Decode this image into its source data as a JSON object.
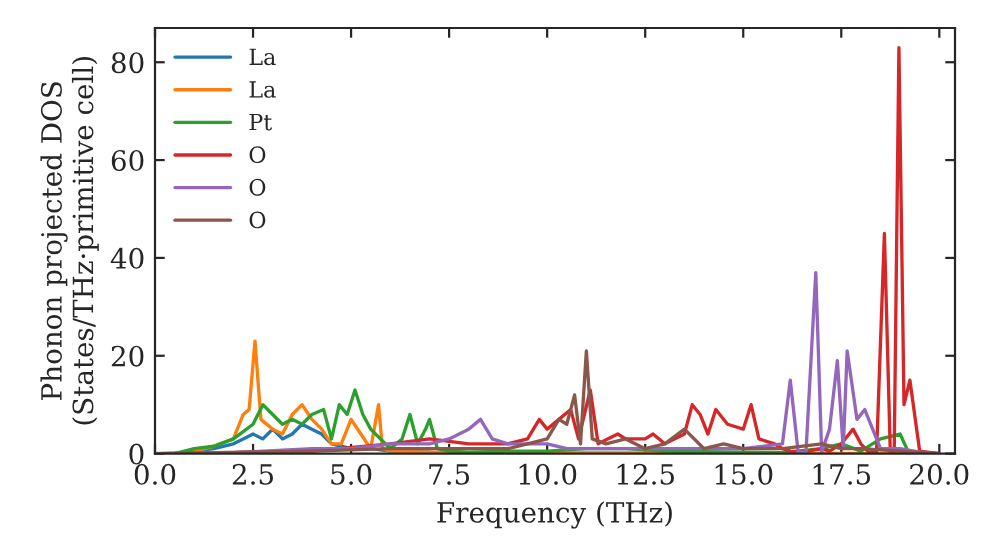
{
  "chart_data": {
    "type": "line",
    "xlabel": "Frequency (THz)",
    "ylabel": "Phonon projected DOS\n(States/THz·primitive cell)",
    "xlim": [
      0,
      20.4
    ],
    "ylim": [
      0,
      87
    ],
    "xticks": [
      {
        "value": 0,
        "label": "0.0"
      },
      {
        "value": 2.5,
        "label": "2.5"
      },
      {
        "value": 5,
        "label": "5.0"
      },
      {
        "value": 7.5,
        "label": "7.5"
      },
      {
        "value": 10,
        "label": "10.0"
      },
      {
        "value": 12.5,
        "label": "12.5"
      },
      {
        "value": 15,
        "label": "15.0"
      },
      {
        "value": 17.5,
        "label": "17.5"
      },
      {
        "value": 20,
        "label": "20.0"
      }
    ],
    "yticks": [
      0,
      20,
      40,
      60,
      80
    ],
    "grid": false,
    "legend": "top left",
    "series": [
      {
        "name": "La",
        "color": "#1f77b4",
        "x": [
          0.5,
          1,
          1.5,
          2,
          2.25,
          2.5,
          2.75,
          3,
          3.25,
          3.5,
          3.75,
          4,
          4.25,
          4.5,
          5,
          5.5,
          6,
          7
        ],
        "values": [
          0,
          0.5,
          1,
          2,
          3,
          4,
          3,
          5,
          3,
          4,
          6,
          5,
          4,
          2,
          1,
          1,
          0.5,
          0.3
        ]
      },
      {
        "name": "La",
        "color": "#ff7f0e",
        "x": [
          0.5,
          1,
          1.5,
          2,
          2.25,
          2.4,
          2.55,
          2.7,
          3,
          3.25,
          3.5,
          3.75,
          4,
          4.25,
          4.5,
          4.75,
          5,
          5.25,
          5.5,
          5.7,
          5.8,
          6,
          7,
          8,
          20
        ],
        "values": [
          0,
          0.5,
          1.5,
          3,
          8,
          9,
          23,
          7,
          5,
          4,
          8,
          10,
          7,
          5,
          2,
          2,
          7,
          4,
          1,
          10,
          1,
          0.5,
          0.3,
          0.2,
          0
        ]
      },
      {
        "name": "Pt",
        "color": "#2ca02c",
        "x": [
          0.5,
          1,
          1.5,
          2,
          2.5,
          2.75,
          3,
          3.25,
          3.5,
          3.75,
          4,
          4.3,
          4.5,
          4.7,
          4.9,
          5.1,
          5.3,
          5.5,
          6,
          6.3,
          6.5,
          6.7,
          6.9,
          7,
          7.2,
          7.5,
          8,
          9,
          10,
          11,
          12,
          13,
          15,
          16,
          17,
          17.5,
          18,
          18.5,
          19,
          19.2,
          20
        ],
        "values": [
          0,
          1,
          1.5,
          3,
          6,
          10,
          8,
          6,
          7,
          6,
          8,
          9,
          3,
          10,
          8,
          13,
          8,
          5,
          1,
          3,
          8,
          2,
          5,
          7,
          1,
          0.5,
          0.3,
          0.5,
          0.5,
          1,
          1,
          0.5,
          0.3,
          0.2,
          1,
          2,
          0.5,
          3,
          4,
          0.5,
          0
        ]
      },
      {
        "name": "O",
        "color": "#d62728",
        "x": [
          0,
          2,
          4,
          6,
          7,
          8,
          9,
          9.5,
          9.8,
          10,
          10.3,
          10.6,
          10.8,
          11.1,
          11.3,
          11.8,
          12,
          12.5,
          12.7,
          13,
          13.5,
          13.7,
          13.9,
          14.1,
          14.3,
          14.6,
          15,
          15.2,
          15.4,
          15.8,
          16,
          16.2,
          16.5,
          17,
          17.2,
          17.5,
          17.8,
          18,
          18.2,
          18.4,
          18.6,
          18.75,
          18.85,
          18.97,
          19.1,
          19.25,
          19.5,
          20
        ],
        "values": [
          0,
          0.2,
          0.5,
          2,
          3,
          2,
          2,
          3,
          7,
          5,
          7,
          9,
          3,
          13,
          2,
          4,
          3,
          3,
          4,
          2,
          4,
          10,
          8,
          4,
          9,
          6,
          5,
          10,
          3,
          2,
          1,
          0.5,
          0.3,
          1,
          0.5,
          2,
          5,
          2,
          0.3,
          0.3,
          45,
          0.3,
          0.3,
          83,
          10,
          15,
          0.5,
          0
        ]
      },
      {
        "name": "O",
        "color": "#9467bd",
        "x": [
          0,
          2,
          4,
          5,
          6,
          7,
          7.5,
          8,
          8.3,
          8.6,
          9,
          10,
          10.5,
          11,
          12,
          13,
          14,
          15,
          16,
          16.2,
          16.4,
          16.6,
          16.85,
          17,
          17.2,
          17.4,
          17.55,
          17.65,
          17.9,
          18.1,
          18.3,
          18.5,
          19,
          19.5,
          20
        ],
        "values": [
          0,
          0.2,
          1,
          1,
          2,
          2,
          3,
          5,
          7,
          3,
          2,
          2,
          1,
          1,
          1,
          1,
          1,
          1,
          2,
          15,
          0.3,
          0.3,
          37,
          0.3,
          5,
          19,
          1,
          21,
          7,
          9,
          5,
          1,
          1,
          0.3,
          0
        ]
      },
      {
        "name": "O",
        "color": "#8c564b",
        "x": [
          0,
          4,
          6,
          7,
          8,
          9,
          9.5,
          10,
          10.3,
          10.5,
          10.7,
          10.85,
          11,
          11.15,
          11.5,
          12,
          12.5,
          13,
          13.5,
          14,
          14.5,
          15,
          16,
          17,
          17.5,
          18,
          19,
          20
        ],
        "values": [
          0,
          0.5,
          1,
          1,
          1,
          1,
          2,
          3,
          7,
          6,
          12,
          2,
          21,
          3,
          2,
          3,
          1,
          2,
          5,
          1,
          2,
          1,
          1,
          2,
          1,
          1,
          0.5,
          0
        ]
      }
    ]
  }
}
